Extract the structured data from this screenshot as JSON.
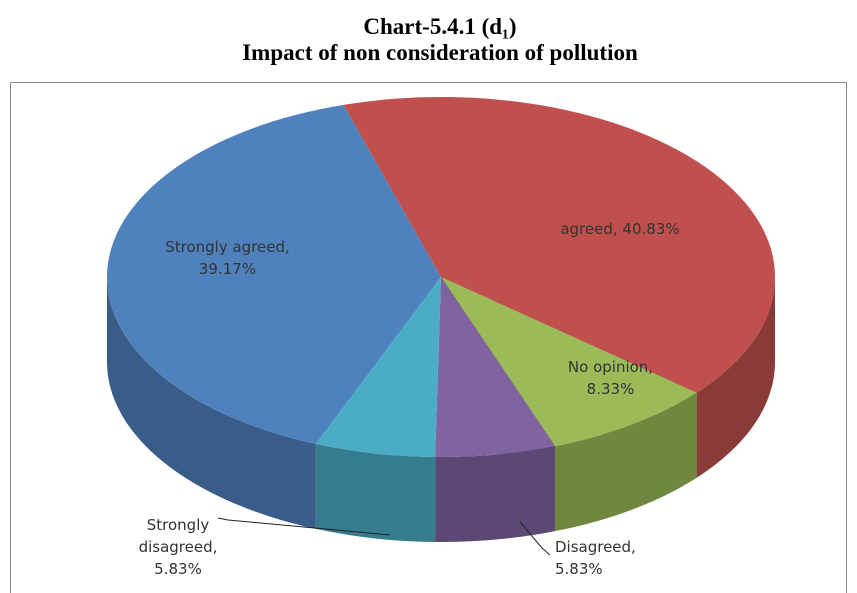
{
  "chart_data": {
    "type": "pie",
    "title": "Chart-5.4.1 (d₁)",
    "subtitle": "Impact of non consideration of pollution",
    "categories": [
      "Strongly agreed",
      "agreed",
      "No opinion",
      "Disagreed",
      "Strongly disagreed"
    ],
    "values": [
      39.17,
      40.83,
      8.33,
      5.83,
      5.83
    ],
    "value_labels": [
      "Strongly agreed, 39.17%",
      "agreed, 40.83%",
      "No opinion, 8.33%",
      "Disagreed, 5.83%",
      "Strongly disagreed, 5.83%"
    ],
    "colors": [
      "#4f81bd",
      "#c0504d",
      "#9bbb59",
      "#8064a2",
      "#4bacc6"
    ]
  }
}
